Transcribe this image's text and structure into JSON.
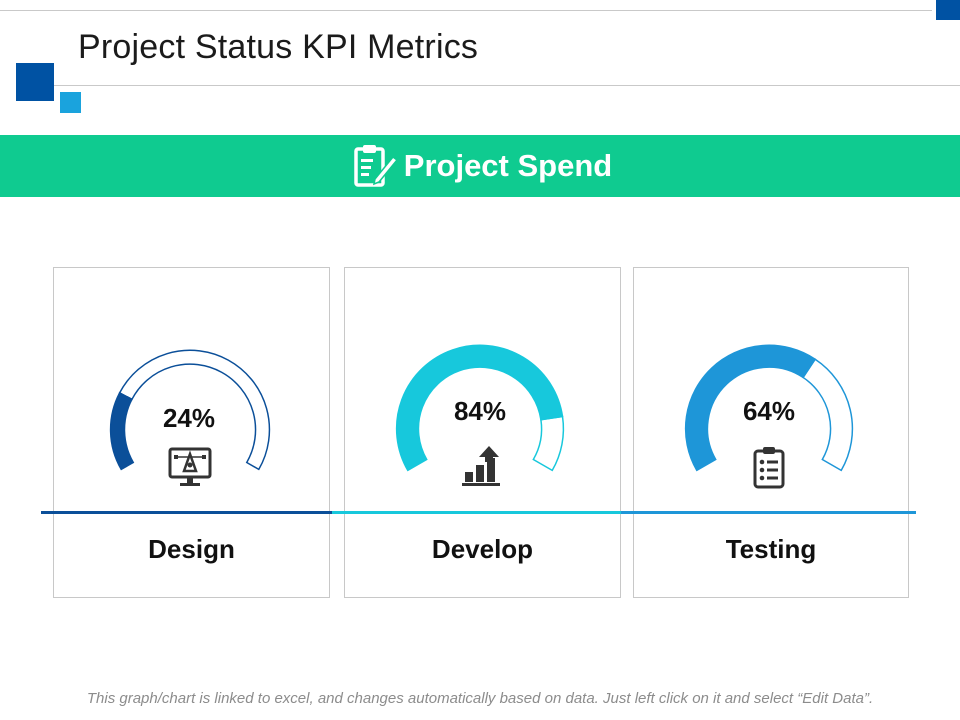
{
  "page": {
    "title": "Project Status KPI Metrics",
    "banner_title": "Project Spend",
    "footer_note": "This graph/chart is linked to excel, and changes automatically based on data. Just left click on it and select “Edit Data”."
  },
  "colors": {
    "primary_blue": "#0052a3",
    "light_blue": "#1aa3dd",
    "banner_green": "#0fcb90"
  },
  "chart_data": [
    {
      "type": "gauge",
      "label": "Design",
      "value": 24,
      "display": "24%",
      "max": 100,
      "color": "#0b4f99",
      "icon": "design-monitor-icon"
    },
    {
      "type": "gauge",
      "label": "Develop",
      "value": 84,
      "display": "84%",
      "max": 100,
      "color": "#17c8dc",
      "icon": "growth-chart-icon"
    },
    {
      "type": "gauge",
      "label": "Testing",
      "value": 64,
      "display": "64%",
      "max": 100,
      "color": "#1e96d8",
      "icon": "clipboard-checklist-icon"
    }
  ]
}
